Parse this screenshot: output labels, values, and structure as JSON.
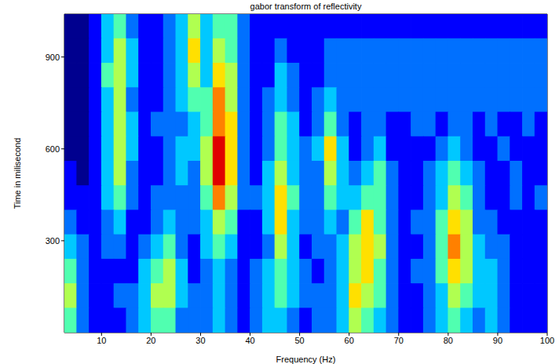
{
  "chart_data": {
    "type": "heatmap",
    "title": "gabor transform of reflectivity",
    "x_label": "Frequency (Hz)",
    "y_label": "Time in milisecond",
    "x": [
      3.75,
      6.25,
      8.75,
      11.25,
      13.75,
      16.25,
      18.75,
      21.25,
      23.75,
      26.25,
      28.75,
      31.25,
      33.75,
      36.25,
      38.75,
      41.25,
      43.75,
      46.25,
      48.75,
      51.25,
      53.75,
      56.25,
      58.75,
      61.25,
      63.75,
      66.25,
      68.75,
      71.25,
      73.75,
      76.25,
      78.75,
      81.25,
      83.75,
      86.25,
      88.75,
      91.25,
      93.75,
      96.25,
      98.75
    ],
    "y": [
      1000,
      920,
      840,
      760,
      680,
      600,
      520,
      440,
      360,
      280,
      200,
      120,
      40
    ],
    "z": [
      [
        0,
        0,
        1,
        3,
        4,
        2,
        1,
        1,
        2,
        3,
        5,
        3,
        4,
        4,
        2,
        1,
        1,
        1,
        1,
        1,
        1,
        1,
        1,
        1,
        1,
        1,
        1,
        1,
        1,
        1,
        1,
        1,
        1,
        1,
        1,
        1,
        1,
        1,
        1
      ],
      [
        0,
        0,
        1,
        3,
        5,
        3,
        1,
        1,
        2,
        3,
        6,
        3,
        5,
        4,
        2,
        1,
        1,
        2,
        1,
        1,
        1,
        2,
        2,
        2,
        2,
        2,
        2,
        2,
        2,
        2,
        2,
        2,
        2,
        2,
        2,
        2,
        2,
        2,
        2
      ],
      [
        0,
        0,
        1,
        4,
        5,
        3,
        1,
        1,
        2,
        3,
        5,
        3,
        6,
        5,
        2,
        1,
        1,
        3,
        2,
        1,
        1,
        2,
        2,
        2,
        2,
        2,
        2,
        2,
        2,
        2,
        2,
        2,
        2,
        2,
        2,
        2,
        2,
        2,
        2
      ],
      [
        0,
        0,
        1,
        3,
        5,
        2,
        1,
        1,
        2,
        3,
        4,
        4,
        7,
        5,
        2,
        1,
        2,
        3,
        2,
        1,
        2,
        3,
        2,
        2,
        2,
        2,
        2,
        2,
        2,
        2,
        2,
        2,
        2,
        2,
        2,
        2,
        2,
        2,
        2
      ],
      [
        0,
        0,
        1,
        3,
        5,
        3,
        1,
        2,
        2,
        2,
        3,
        4,
        7,
        6,
        2,
        1,
        2,
        4,
        3,
        1,
        2,
        4,
        2,
        1,
        2,
        2,
        1,
        1,
        2,
        2,
        1,
        2,
        2,
        1,
        2,
        1,
        1,
        2,
        1
      ],
      [
        0,
        0,
        1,
        3,
        5,
        3,
        1,
        1,
        2,
        3,
        3,
        5,
        8,
        6,
        2,
        1,
        2,
        4,
        3,
        2,
        3,
        6,
        3,
        1,
        2,
        3,
        1,
        1,
        1,
        1,
        2,
        3,
        2,
        1,
        1,
        2,
        1,
        1,
        1
      ],
      [
        1,
        0,
        1,
        3,
        5,
        2,
        1,
        1,
        2,
        3,
        2,
        5,
        8,
        6,
        2,
        1,
        3,
        5,
        3,
        2,
        2,
        5,
        3,
        2,
        3,
        4,
        2,
        1,
        1,
        2,
        3,
        4,
        3,
        2,
        1,
        1,
        2,
        1,
        1
      ],
      [
        1,
        1,
        1,
        3,
        4,
        2,
        1,
        2,
        2,
        2,
        2,
        4,
        7,
        5,
        2,
        2,
        3,
        6,
        4,
        2,
        2,
        4,
        3,
        3,
        4,
        4,
        2,
        1,
        1,
        2,
        3,
        5,
        4,
        2,
        1,
        1,
        2,
        1,
        2
      ],
      [
        2,
        1,
        1,
        2,
        3,
        1,
        1,
        2,
        3,
        2,
        2,
        3,
        5,
        4,
        1,
        1,
        3,
        6,
        3,
        2,
        2,
        3,
        2,
        4,
        6,
        4,
        2,
        1,
        2,
        2,
        4,
        6,
        5,
        2,
        2,
        1,
        1,
        1,
        1
      ],
      [
        3,
        2,
        1,
        2,
        2,
        1,
        2,
        3,
        4,
        2,
        1,
        3,
        4,
        3,
        1,
        1,
        2,
        5,
        3,
        1,
        2,
        2,
        3,
        5,
        6,
        5,
        2,
        1,
        1,
        2,
        4,
        7,
        5,
        3,
        2,
        2,
        1,
        1,
        1
      ],
      [
        4,
        2,
        1,
        1,
        1,
        1,
        3,
        4,
        5,
        3,
        1,
        2,
        3,
        2,
        1,
        2,
        3,
        4,
        3,
        2,
        1,
        2,
        3,
        5,
        6,
        4,
        2,
        1,
        2,
        2,
        4,
        6,
        5,
        3,
        3,
        2,
        1,
        1,
        1
      ],
      [
        5,
        2,
        1,
        1,
        2,
        2,
        3,
        5,
        5,
        3,
        2,
        2,
        3,
        2,
        1,
        2,
        3,
        4,
        3,
        2,
        2,
        2,
        3,
        6,
        5,
        4,
        2,
        1,
        1,
        2,
        3,
        5,
        4,
        3,
        3,
        2,
        1,
        1,
        1
      ],
      [
        4,
        2,
        1,
        1,
        1,
        2,
        3,
        4,
        4,
        2,
        2,
        2,
        3,
        2,
        1,
        2,
        3,
        3,
        2,
        1,
        2,
        2,
        3,
        5,
        4,
        3,
        2,
        1,
        1,
        2,
        3,
        4,
        3,
        2,
        3,
        2,
        1,
        1,
        1
      ]
    ],
    "zlim": [
      0,
      8
    ],
    "xlim": [
      2.5,
      100
    ],
    "ylim": [
      0,
      1040
    ],
    "xticks": [
      10,
      20,
      30,
      40,
      50,
      60,
      70,
      80,
      90,
      100
    ],
    "yticks": [
      300,
      600,
      900
    ]
  }
}
